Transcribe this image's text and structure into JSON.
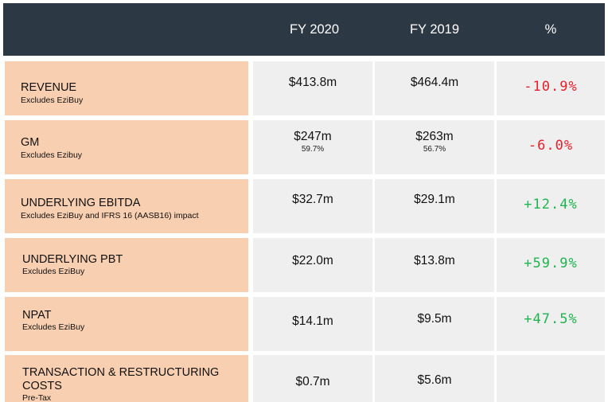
{
  "header": {
    "col_fy2020": "FY 2020",
    "col_fy2019": "FY 2019",
    "col_pct": "%"
  },
  "rows": [
    {
      "title": "REVENUE",
      "subtitle": "Excludes EziBuy",
      "fy2020": "$413.8m",
      "fy2019": "$464.4m",
      "pct": "-10.9%",
      "pct_color": "#e8202a"
    },
    {
      "title": "GM",
      "subtitle": "Excludes Ezibuy",
      "fy2020": "$247m",
      "fy2020_sub": "59.7%",
      "fy2019": "$263m",
      "fy2019_sub": "56.7%",
      "pct": "-6.0%",
      "pct_color": "#e8202a"
    },
    {
      "title": "UNDERLYING EBITDA",
      "subtitle": "Excludes EziBuy and IFRS 16 (AASB16) impact",
      "fy2020": "$32.7m",
      "fy2019": "$29.1m",
      "pct": "+12.4%",
      "pct_color": "#1fb54f"
    },
    {
      "title": "UNDERLYING PBT",
      "subtitle": "Excludes EziBuy",
      "fy2020": "$22.0m",
      "fy2019": "$13.8m",
      "pct": "+59.9%",
      "pct_color": "#1fb54f"
    },
    {
      "title": "NPAT",
      "subtitle": "Excludes EziBuy",
      "fy2020": "$14.1m",
      "fy2019": "$9.5m",
      "pct": "+47.5%",
      "pct_color": "#1fb54f"
    },
    {
      "title_line1": "TRANSACTION & RESTRUCTURING",
      "title_line2": "COSTS",
      "subtitle": "Pre-Tax",
      "fy2020": "$0.7m",
      "fy2019": "$5.6m",
      "pct": ""
    }
  ],
  "colors": {
    "header_bg": "#2d3845",
    "label_bg": "#f8cfb0",
    "cell_bg": "#efefef",
    "negative": "#e8202a",
    "positive": "#1fb54f"
  }
}
